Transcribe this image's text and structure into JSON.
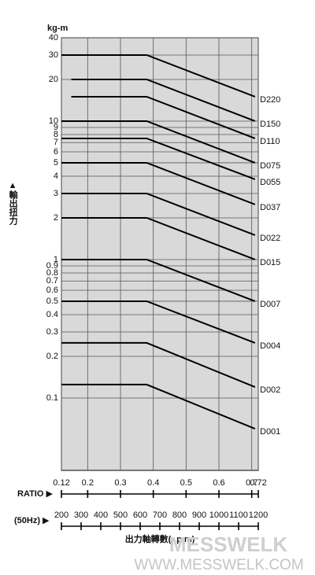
{
  "chart_data": {
    "type": "line",
    "y_unit": "kg-m",
    "y_label": "▲輸出扭力",
    "y_log": true,
    "ylim": [
      0.03,
      40
    ],
    "yticks": [
      40,
      30,
      20,
      10,
      9,
      8,
      7,
      6,
      5,
      4,
      3,
      2,
      1,
      0.9,
      0.8,
      0.7,
      0.6,
      0.5,
      0.4,
      0.3,
      0.2,
      0.1
    ],
    "x_label": "RATIO ▶",
    "xlim": [
      0.12,
      0.72
    ],
    "xticks": [
      0.12,
      0.2,
      0.3,
      0.4,
      0.5,
      0.6,
      0.7,
      0.72
    ],
    "x2_label": "(50Hz) ▶",
    "x2_title": "出力軸轉數(r.p.m)",
    "x2lim": [
      200,
      1200
    ],
    "x2ticks": [
      200,
      300,
      400,
      500,
      600,
      700,
      800,
      900,
      1000,
      1100,
      1200
    ],
    "grid": true,
    "series": [
      {
        "name": "D220",
        "color": "#000000",
        "x": [
          0.12,
          0.38,
          0.71
        ],
        "values": [
          30,
          30,
          15
        ]
      },
      {
        "name": "D150",
        "color": "#000000",
        "x": [
          0.15,
          0.38,
          0.71
        ],
        "values": [
          20,
          20,
          10
        ]
      },
      {
        "name": "D110",
        "color": "#000000",
        "x": [
          0.15,
          0.38,
          0.71
        ],
        "values": [
          15,
          15,
          7.5
        ]
      },
      {
        "name": "D075",
        "color": "#000000",
        "x": [
          0.12,
          0.38,
          0.71
        ],
        "values": [
          10,
          10,
          5
        ]
      },
      {
        "name": "D055",
        "color": "#000000",
        "x": [
          0.12,
          0.38,
          0.71
        ],
        "values": [
          7.5,
          7.5,
          3.8
        ]
      },
      {
        "name": "D037",
        "color": "#000000",
        "x": [
          0.12,
          0.38,
          0.71
        ],
        "values": [
          5,
          5,
          2.5
        ]
      },
      {
        "name": "D022",
        "color": "#000000",
        "x": [
          0.12,
          0.38,
          0.71
        ],
        "values": [
          3,
          3,
          1.5
        ]
      },
      {
        "name": "D015",
        "color": "#000000",
        "x": [
          0.12,
          0.38,
          0.71
        ],
        "values": [
          2,
          2,
          1
        ]
      },
      {
        "name": "D007",
        "color": "#000000",
        "x": [
          0.12,
          0.38,
          0.71
        ],
        "values": [
          1,
          1,
          0.5
        ]
      },
      {
        "name": "D004",
        "color": "#000000",
        "x": [
          0.12,
          0.38,
          0.71
        ],
        "values": [
          0.5,
          0.5,
          0.25
        ]
      },
      {
        "name": "D002",
        "color": "#000000",
        "x": [
          0.12,
          0.38,
          0.71
        ],
        "values": [
          0.25,
          0.25,
          0.12
        ]
      },
      {
        "name": "D001",
        "color": "#000000",
        "x": [
          0.12,
          0.38,
          0.71
        ],
        "values": [
          0.125,
          0.125,
          0.06
        ]
      }
    ],
    "watermark": "MESSWELK",
    "website": "WWW.MESSWELK.COM"
  }
}
